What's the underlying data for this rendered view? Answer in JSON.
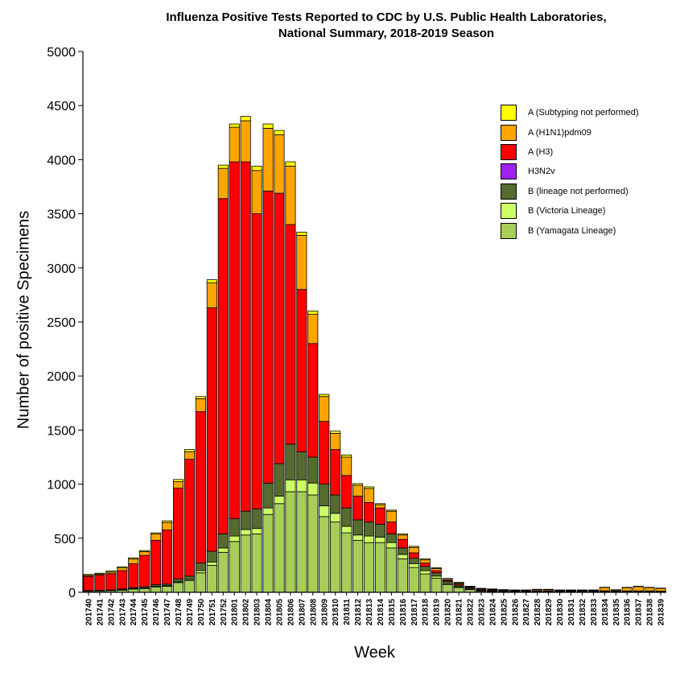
{
  "chart_data": {
    "type": "bar",
    "stacked": true,
    "title": "Influenza Positive Tests Reported to CDC by U.S. Public Health Laboratories,",
    "subtitle": "National Summary, 2018-2019 Season",
    "xlabel": "Week",
    "ylabel": "Number of positive Specimens",
    "ylim": [
      0,
      5000
    ],
    "yticks": [
      0,
      500,
      1000,
      1500,
      2000,
      2500,
      3000,
      3500,
      4000,
      4500,
      5000
    ],
    "grid": false,
    "legend_position": "top-right",
    "categories": [
      "201740",
      "201741",
      "201742",
      "201743",
      "201744",
      "201745",
      "201746",
      "201747",
      "201748",
      "201749",
      "201750",
      "201751",
      "201752",
      "201801",
      "201802",
      "201803",
      "201804",
      "201805",
      "201806",
      "201807",
      "201808",
      "201809",
      "201810",
      "201811",
      "201812",
      "201813",
      "201814",
      "201815",
      "201816",
      "201817",
      "201818",
      "201819",
      "201820",
      "201821",
      "201822",
      "201823",
      "201824",
      "201825",
      "201826",
      "201827",
      "201828",
      "201829",
      "201830",
      "201831",
      "201832",
      "201833",
      "201834",
      "201835",
      "201836",
      "201837",
      "201838",
      "201839"
    ],
    "series": [
      {
        "name": "B (Yamagata Lineage)",
        "color": "#A6CE58",
        "values": [
          10,
          12,
          15,
          20,
          30,
          35,
          50,
          55,
          90,
          110,
          180,
          250,
          370,
          470,
          530,
          540,
          720,
          820,
          930,
          930,
          900,
          700,
          650,
          550,
          480,
          460,
          460,
          410,
          310,
          230,
          170,
          130,
          70,
          45,
          25,
          10,
          8,
          5,
          4,
          4,
          5,
          5,
          4,
          4,
          4,
          4,
          4,
          3,
          3,
          3,
          3,
          2
        ]
      },
      {
        "name": "B (Victoria Lineage)",
        "color": "#CCFF66",
        "values": [
          2,
          2,
          2,
          3,
          4,
          4,
          5,
          6,
          8,
          10,
          20,
          30,
          40,
          50,
          50,
          50,
          60,
          70,
          110,
          110,
          110,
          100,
          80,
          60,
          50,
          60,
          50,
          50,
          40,
          35,
          30,
          20,
          10,
          7,
          5,
          3,
          2,
          2,
          1,
          1,
          1,
          1,
          1,
          1,
          1,
          1,
          1,
          1,
          1,
          1,
          1,
          1
        ]
      },
      {
        "name": "B (lineage not performed)",
        "color": "#556B2F",
        "values": [
          5,
          5,
          5,
          8,
          10,
          12,
          15,
          15,
          25,
          30,
          70,
          100,
          130,
          160,
          170,
          180,
          230,
          300,
          330,
          260,
          240,
          200,
          170,
          170,
          140,
          130,
          120,
          80,
          60,
          50,
          40,
          30,
          20,
          15,
          10,
          8,
          5,
          5,
          4,
          4,
          4,
          4,
          4,
          4,
          4,
          4,
          4,
          4,
          4,
          4,
          4,
          3
        ]
      },
      {
        "name": "H3N2v",
        "color": "#A020F0",
        "values": [
          0,
          0,
          0,
          0,
          0,
          0,
          0,
          0,
          0,
          0,
          0,
          0,
          0,
          0,
          0,
          0,
          0,
          0,
          0,
          0,
          0,
          0,
          0,
          0,
          0,
          0,
          0,
          0,
          0,
          0,
          0,
          0,
          0,
          0,
          0,
          0,
          0,
          0,
          0,
          0,
          0,
          0,
          0,
          0,
          0,
          0,
          0,
          0,
          0,
          0,
          0,
          0
        ]
      },
      {
        "name": "A (H3)",
        "color": "#FF0000",
        "values": [
          130,
          140,
          150,
          170,
          220,
          290,
          410,
          500,
          840,
          1080,
          1400,
          2250,
          3100,
          3300,
          3230,
          2730,
          2700,
          2500,
          2030,
          1500,
          1050,
          580,
          420,
          300,
          220,
          180,
          150,
          110,
          80,
          50,
          30,
          20,
          10,
          10,
          8,
          8,
          8,
          5,
          5,
          5,
          5,
          5,
          5,
          5,
          5,
          5,
          5,
          5,
          5,
          5,
          5,
          5
        ]
      },
      {
        "name": "A (H1N1)pdm09",
        "color": "#FFA500",
        "values": [
          10,
          10,
          15,
          25,
          45,
          35,
          60,
          70,
          60,
          70,
          120,
          230,
          280,
          320,
          380,
          400,
          580,
          540,
          540,
          500,
          270,
          230,
          150,
          170,
          100,
          130,
          30,
          100,
          40,
          50,
          30,
          20,
          10,
          10,
          5,
          5,
          5,
          5,
          5,
          5,
          10,
          10,
          5,
          5,
          5,
          5,
          30,
          8,
          30,
          40,
          30,
          25
        ]
      },
      {
        "name": "A (Subtyping not performed)",
        "color": "#FFFF00",
        "values": [
          8,
          8,
          10,
          10,
          10,
          10,
          10,
          15,
          20,
          20,
          20,
          30,
          30,
          30,
          40,
          40,
          40,
          40,
          40,
          30,
          30,
          20,
          20,
          20,
          15,
          15,
          10,
          10,
          10,
          10,
          10,
          8,
          8,
          5,
          3,
          3,
          3,
          3,
          3,
          3,
          3,
          3,
          3,
          3,
          3,
          3,
          3,
          3,
          3,
          3,
          3,
          3
        ]
      }
    ]
  },
  "legend": {
    "items": [
      {
        "label": "A (Subtyping not performed)",
        "color": "#FFFF00"
      },
      {
        "label": "A (H1N1)pdm09",
        "color": "#FFA500"
      },
      {
        "label": "A (H3)",
        "color": "#FF0000"
      },
      {
        "label": "H3N2v",
        "color": "#A020F0"
      },
      {
        "label": "B (lineage not performed)",
        "color": "#556B2F"
      },
      {
        "label": "B (Victoria Lineage)",
        "color": "#CCFF66"
      },
      {
        "label": "B (Yamagata Lineage)",
        "color": "#A6CE58"
      }
    ]
  }
}
